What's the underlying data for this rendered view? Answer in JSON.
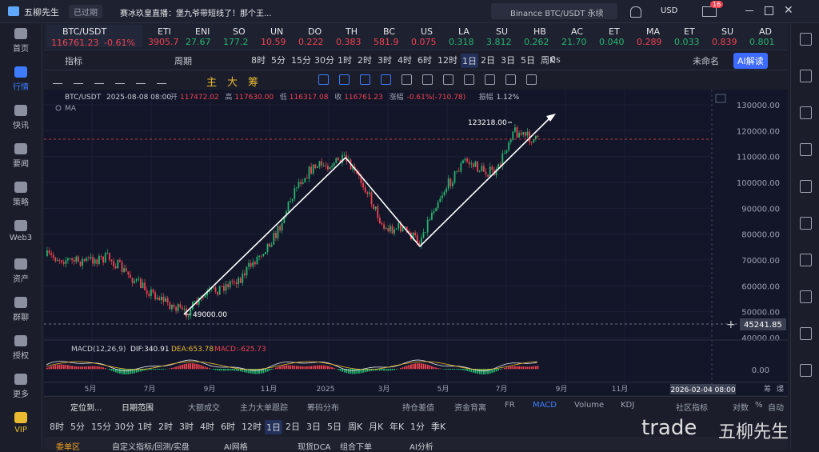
{
  "top_bar": {
    "app_name": "五柳先生",
    "status": "已过期",
    "news": "赛冰玖皇直播：堡九爷带短线了！那个王...",
    "search": "Binance BTC/USDT 永续",
    "currency": "USD",
    "badge": "16"
  },
  "sidebar": [
    "首页",
    "行情",
    "快讯",
    "要闻",
    "策略",
    "Web3",
    "资产",
    "群聊",
    "授权",
    "更多",
    "VIP"
  ],
  "main_ticker": {
    "symbol": "BTC/USDT",
    "price": "116761.23",
    "change": "-0.61%"
  },
  "tickers": [
    {
      "symbol": "ETI",
      "price": "3905.7",
      "trend": "down"
    },
    {
      "symbol": "ENI",
      "price": "27.67",
      "trend": "up"
    },
    {
      "symbol": "SO",
      "price": "177.2",
      "trend": "up"
    },
    {
      "symbol": "UN",
      "price": "10.59",
      "trend": "down"
    },
    {
      "symbol": "DO",
      "price": "0.222",
      "trend": "down"
    },
    {
      "symbol": "TH",
      "price": "0.383",
      "trend": "down"
    },
    {
      "symbol": "BC",
      "price": "581.9",
      "trend": "down"
    },
    {
      "symbol": "US",
      "price": "0.075",
      "trend": "down"
    },
    {
      "symbol": "LA",
      "price": "0.318",
      "trend": "up"
    },
    {
      "symbol": "SU",
      "price": "3.812",
      "trend": "up"
    },
    {
      "symbol": "HB",
      "price": "0.262",
      "trend": "up"
    },
    {
      "symbol": "AC",
      "price": "21.70",
      "trend": "up"
    },
    {
      "symbol": "ET",
      "price": "0.040",
      "trend": "up"
    },
    {
      "symbol": "MA",
      "price": "0.289",
      "trend": "down"
    },
    {
      "symbol": "ET",
      "price": "0.033",
      "trend": "up"
    },
    {
      "symbol": "SU",
      "price": "0.839",
      "trend": "down"
    },
    {
      "symbol": "AD",
      "price": "0.801",
      "trend": "up"
    }
  ],
  "toolbar": {
    "indicator": "指标",
    "period": "周期",
    "intervals": [
      "8时",
      "5分",
      "15分",
      "30分",
      "1时",
      "2时",
      "3时",
      "4时",
      "6时",
      "12时",
      "1日",
      "2日",
      "3日",
      "5日",
      "周K"
    ],
    "selected": "1日",
    "countdown": "0s",
    "layout": "未命名",
    "ai": "AI解读"
  },
  "drawing_tools": [
    "主",
    "大",
    "筹"
  ],
  "chart": {
    "symbol": "BTC/USDT",
    "time": "2025-08-08 08:00",
    "ohlc": [
      [
        "开",
        "117472.02"
      ],
      [
        "高",
        "117630.00"
      ],
      [
        "低",
        "116317.08"
      ],
      [
        "收",
        "116761.23"
      ],
      [
        "涨幅",
        "-0.61%(-710.78)"
      ],
      [
        "振幅",
        "1.12%"
      ]
    ],
    "ma": "MA",
    "y_labels": [
      "130000.00",
      "120000.00",
      "110000.00",
      "100000.00",
      "90000.00",
      "80000.00",
      "70000.00",
      "60000.00",
      "50000.00",
      "40000.00"
    ],
    "x_labels": [
      "5月",
      "7月",
      "9月",
      "11月",
      "2025",
      "3月",
      "5月",
      "7月",
      "9月",
      "11月"
    ],
    "high_note": "123218.00",
    "low_note": "49000.00",
    "crosshair_price": "45241.85",
    "crosshair_time": "2026-02-04 08:00",
    "macd": {
      "name": "MACD(12,26,9)",
      "dif": "DIF:340.91",
      "dea": "DEA:653.78",
      "macd": "MACD:-625.73",
      "zero": "0.00"
    },
    "corner": [
      "筹",
      "爆"
    ]
  },
  "bottom": {
    "row1": [
      "定位到...",
      "日期范围",
      "大额成交",
      "主力大单跟踪",
      "筹码分布",
      "持仓差值",
      "资金背离",
      "FR",
      "MACD",
      "Volume",
      "KDJ",
      "社区指标",
      "对数",
      "%",
      "自动"
    ],
    "row2": [
      "8时",
      "5分",
      "15分",
      "30分",
      "1时",
      "2时",
      "3时",
      "4时",
      "6时",
      "12时",
      "1日",
      "2日",
      "3日",
      "5日",
      "周K",
      "月K",
      "年K",
      "1分",
      "季K"
    ],
    "tabs": [
      "委单区",
      "自定义指标/回测/实盘",
      "AI网格",
      "现货DCA",
      "组合下单",
      "AI分析"
    ],
    "watermark": [
      "trade",
      "五柳先生"
    ]
  }
}
